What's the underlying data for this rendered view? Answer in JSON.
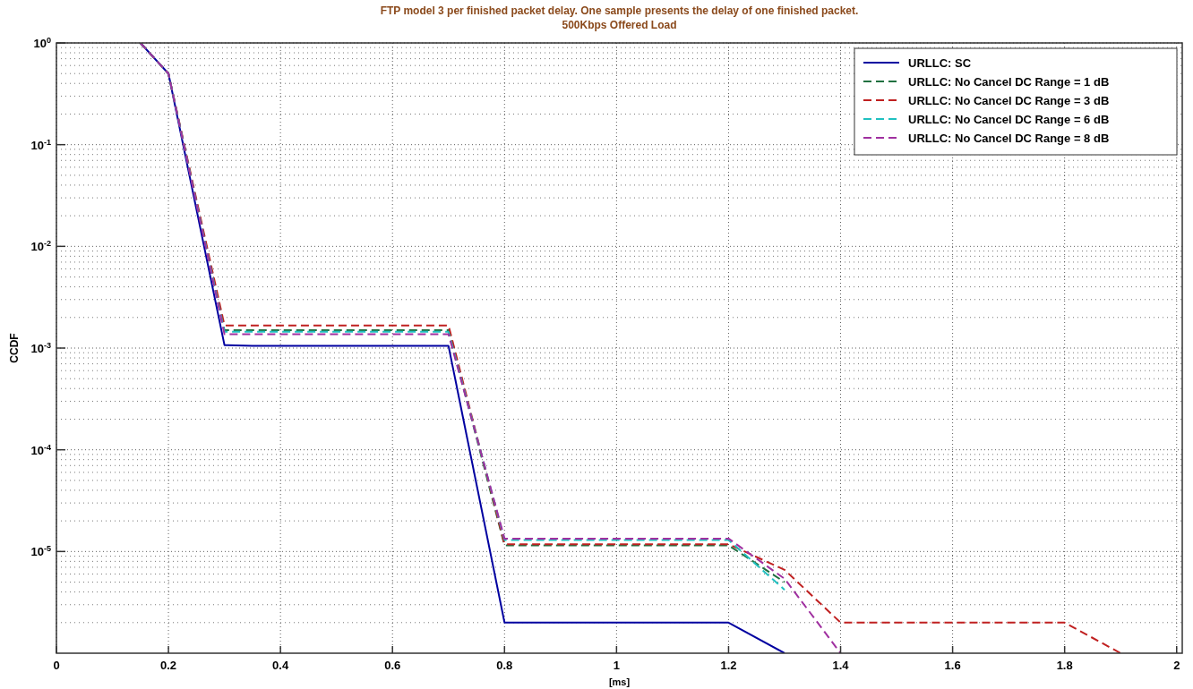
{
  "chart_data": {
    "type": "line",
    "title": "FTP model 3 per finished packet delay. One sample presents the delay of one finished packet.",
    "subtitle": "500Kbps Offered Load",
    "xlabel": "[ms]",
    "ylabel": "CCDF",
    "log": "y",
    "grid": true,
    "legend": "top right",
    "xlim": [
      0,
      2.01
    ],
    "xticks": [
      0,
      0.2,
      0.4,
      0.6,
      0.8,
      1,
      1.2,
      1.4,
      1.6,
      1.8,
      2
    ],
    "ylim": [
      1e-06,
      1
    ],
    "yticks": [
      {
        "value": 1,
        "label": "10$^{0}$"
      },
      {
        "value": 0.1,
        "label": "10$^{-1}$"
      },
      {
        "value": 0.01,
        "label": "10$^{-2}$"
      },
      {
        "value": 0.001,
        "label": "10$^{-3}$"
      },
      {
        "value": 0.0001,
        "label": "10$^{-4}$"
      },
      {
        "value": 1e-05,
        "label": "10$^{-5}$"
      }
    ],
    "series": [
      {
        "name": "URLLC: SC",
        "color": "#0000a0",
        "line_style": "solid",
        "x": [
          0.15,
          0.2,
          0.3,
          0.35,
          0.7,
          0.8,
          1.2,
          1.3
        ],
        "values": [
          1,
          0.5,
          0.00107,
          0.00105,
          0.00105,
          2e-06,
          2e-06,
          1e-06
        ]
      },
      {
        "name": "URLLC: No Cancel DC Range = 1 dB",
        "color": "#207040",
        "line_style": "dashed",
        "x": [
          0.15,
          0.2,
          0.3,
          0.7,
          0.8,
          1.2,
          1.3
        ],
        "values": [
          1,
          0.5,
          0.0015,
          0.0015,
          1.15e-05,
          1.15e-05,
          5e-06
        ]
      },
      {
        "name": "URLLC: No Cancel DC Range = 3 dB",
        "color": "#c02020",
        "line_style": "dashed",
        "x": [
          0.15,
          0.2,
          0.3,
          0.7,
          0.8,
          1.2,
          1.3,
          1.4,
          1.8,
          1.9
        ],
        "values": [
          1,
          0.5,
          0.00167,
          0.00167,
          1.18e-05,
          1.18e-05,
          6.6e-06,
          2e-06,
          2e-06,
          1e-06
        ]
      },
      {
        "name": "URLLC: No Cancel DC Range = 6 dB",
        "color": "#20c0c0",
        "line_style": "dashed",
        "x": [
          0.15,
          0.2,
          0.3,
          0.7,
          0.8,
          1.2,
          1.3
        ],
        "values": [
          1,
          0.5,
          0.00145,
          0.00145,
          1.3e-05,
          1.3e-05,
          4.2e-06
        ]
      },
      {
        "name": "URLLC: No Cancel DC Range = 8 dB",
        "color": "#a030a0",
        "line_style": "dashed",
        "x": [
          0.15,
          0.2,
          0.3,
          0.7,
          0.8,
          1.2,
          1.3,
          1.4
        ],
        "values": [
          1,
          0.5,
          0.00137,
          0.00137,
          1.34e-05,
          1.34e-05,
          5.4e-06,
          1e-06
        ]
      }
    ]
  }
}
